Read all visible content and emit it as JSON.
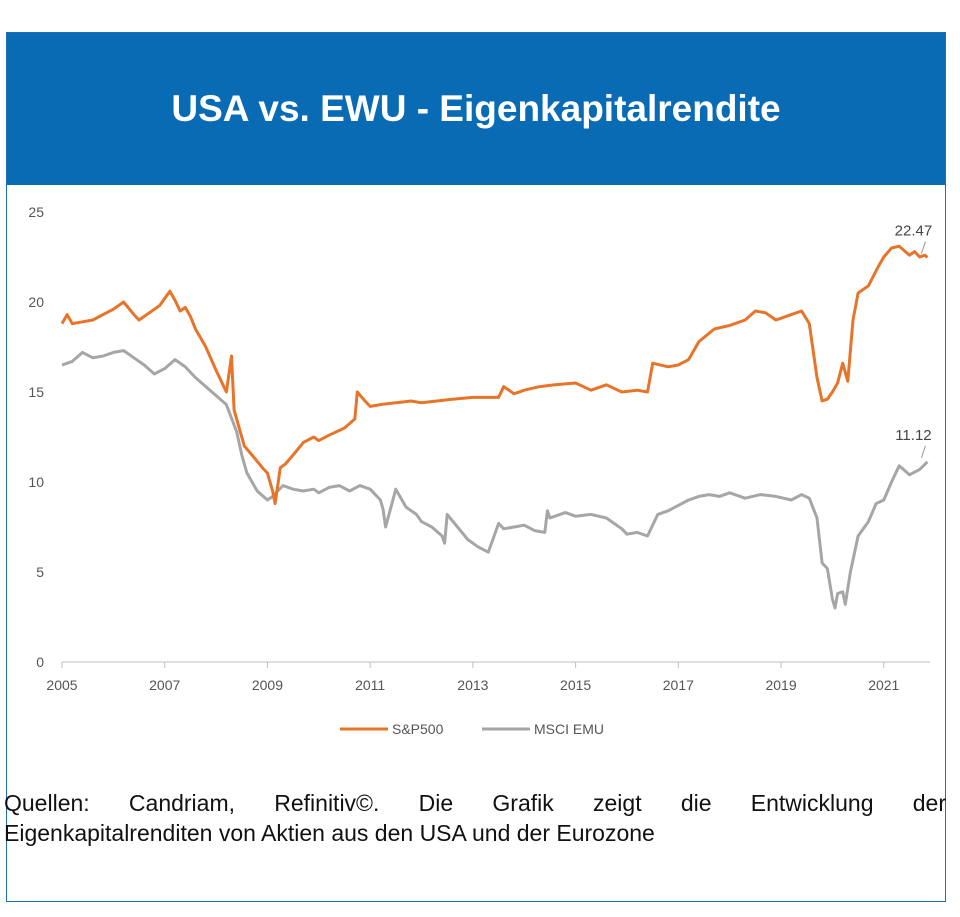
{
  "header": {
    "title": "USA vs. EWU - Eigenkapitalrendite"
  },
  "caption": {
    "line1": "Quellen: Candriam, Refinitiv©. Die Grafik zeigt die Entwicklung der",
    "line2": "Eigenkapitalrenditen von Aktien aus den USA und der Eurozone"
  },
  "colors": {
    "header_bg": "#0a6bb5",
    "sp500": "#e8742a",
    "msci_emu": "#a6a6a6"
  },
  "chart_data": {
    "type": "line",
    "title": "USA vs. EWU - Eigenkapitalrendite",
    "xlabel": "",
    "ylabel": "",
    "xlim": [
      2005,
      2021.9
    ],
    "ylim": [
      0,
      25
    ],
    "x_ticks": [
      "2005",
      "2007",
      "2009",
      "2011",
      "2013",
      "2015",
      "2017",
      "2019",
      "2021"
    ],
    "y_ticks": [
      "0",
      "5",
      "10",
      "15",
      "20",
      "25"
    ],
    "legend": {
      "position": "bottom-center",
      "entries": [
        "S&P500",
        "MSCI EMU"
      ]
    },
    "annotations": [
      {
        "series": "S&P500",
        "text": "22.47"
      },
      {
        "series": "MSCI EMU",
        "text": "11.12"
      }
    ],
    "series": [
      {
        "name": "S&P500",
        "color": "#e8742a",
        "x": [
          2005.0,
          2005.1,
          2005.2,
          2005.4,
          2005.6,
          2005.8,
          2006.0,
          2006.2,
          2006.4,
          2006.5,
          2006.7,
          2006.9,
          2007.0,
          2007.1,
          2007.2,
          2007.3,
          2007.4,
          2007.5,
          2007.6,
          2007.8,
          2008.0,
          2008.2,
          2008.3,
          2008.35,
          2008.45,
          2008.55,
          2008.7,
          2008.9,
          2009.0,
          2009.1,
          2009.15,
          2009.25,
          2009.35,
          2009.5,
          2009.7,
          2009.9,
          2010.0,
          2010.2,
          2010.5,
          2010.7,
          2010.75,
          2010.9,
          2011.0,
          2011.2,
          2011.5,
          2011.8,
          2012.0,
          2012.3,
          2012.6,
          2013.0,
          2013.3,
          2013.5,
          2013.6,
          2013.8,
          2014.0,
          2014.3,
          2014.6,
          2015.0,
          2015.3,
          2015.6,
          2015.9,
          2016.2,
          2016.4,
          2016.5,
          2016.8,
          2017.0,
          2017.2,
          2017.4,
          2017.7,
          2018.0,
          2018.3,
          2018.5,
          2018.7,
          2018.9,
          2019.0,
          2019.2,
          2019.4,
          2019.55,
          2019.7,
          2019.8,
          2019.9,
          2020.0,
          2020.1,
          2020.2,
          2020.3,
          2020.4,
          2020.5,
          2020.7,
          2020.9,
          2021.0,
          2021.15,
          2021.3,
          2021.5,
          2021.6,
          2021.7,
          2021.8,
          2021.85
        ],
        "values": [
          18.8,
          19.3,
          18.8,
          18.9,
          19.0,
          19.3,
          19.6,
          20.0,
          19.3,
          19.0,
          19.4,
          19.8,
          20.2,
          20.6,
          20.1,
          19.5,
          19.7,
          19.2,
          18.5,
          17.5,
          16.2,
          15.0,
          17.0,
          14.0,
          13.0,
          12.0,
          11.5,
          10.8,
          10.5,
          9.5,
          8.8,
          10.8,
          11.0,
          11.5,
          12.2,
          12.5,
          12.3,
          12.6,
          13.0,
          13.5,
          15.0,
          14.5,
          14.2,
          14.3,
          14.4,
          14.5,
          14.4,
          14.5,
          14.6,
          14.7,
          14.7,
          14.7,
          15.3,
          14.9,
          15.1,
          15.3,
          15.4,
          15.5,
          15.1,
          15.4,
          15.0,
          15.1,
          15.0,
          16.6,
          16.4,
          16.5,
          16.8,
          17.8,
          18.5,
          18.7,
          19.0,
          19.5,
          19.4,
          19.0,
          19.1,
          19.3,
          19.5,
          18.8,
          15.8,
          14.5,
          14.6,
          15.0,
          15.5,
          16.6,
          15.6,
          19.0,
          20.5,
          20.9,
          22.0,
          22.5,
          23.0,
          23.1,
          22.6,
          22.8,
          22.5,
          22.6,
          22.47
        ]
      },
      {
        "name": "MSCI EMU",
        "color": "#a6a6a6",
        "x": [
          2005.0,
          2005.2,
          2005.4,
          2005.6,
          2005.8,
          2006.0,
          2006.2,
          2006.4,
          2006.6,
          2006.8,
          2007.0,
          2007.2,
          2007.4,
          2007.6,
          2007.8,
          2008.0,
          2008.2,
          2008.4,
          2008.5,
          2008.6,
          2008.8,
          2009.0,
          2009.1,
          2009.3,
          2009.5,
          2009.7,
          2009.9,
          2010.0,
          2010.2,
          2010.4,
          2010.6,
          2010.8,
          2011.0,
          2011.2,
          2011.25,
          2011.3,
          2011.5,
          2011.7,
          2011.9,
          2012.0,
          2012.2,
          2012.4,
          2012.45,
          2012.5,
          2012.7,
          2012.9,
          2013.1,
          2013.3,
          2013.5,
          2013.6,
          2013.8,
          2014.0,
          2014.2,
          2014.4,
          2014.45,
          2014.5,
          2014.8,
          2015.0,
          2015.3,
          2015.6,
          2015.9,
          2016.0,
          2016.2,
          2016.4,
          2016.6,
          2016.8,
          2017.0,
          2017.2,
          2017.4,
          2017.6,
          2017.8,
          2018.0,
          2018.3,
          2018.6,
          2018.9,
          2019.2,
          2019.4,
          2019.55,
          2019.7,
          2019.8,
          2019.9,
          2020.0,
          2020.05,
          2020.1,
          2020.2,
          2020.25,
          2020.35,
          2020.5,
          2020.7,
          2020.85,
          2021.0,
          2021.15,
          2021.3,
          2021.5,
          2021.7,
          2021.85
        ],
        "values": [
          16.5,
          16.7,
          17.2,
          16.9,
          17.0,
          17.2,
          17.3,
          16.9,
          16.5,
          16.0,
          16.3,
          16.8,
          16.4,
          15.8,
          15.3,
          14.8,
          14.3,
          12.8,
          11.5,
          10.5,
          9.5,
          9.0,
          9.2,
          9.8,
          9.6,
          9.5,
          9.6,
          9.4,
          9.7,
          9.8,
          9.5,
          9.8,
          9.6,
          9.0,
          8.5,
          7.5,
          9.6,
          8.6,
          8.2,
          7.8,
          7.5,
          7.0,
          6.6,
          8.2,
          7.5,
          6.8,
          6.4,
          6.1,
          7.7,
          7.4,
          7.5,
          7.6,
          7.3,
          7.2,
          8.4,
          8.0,
          8.3,
          8.1,
          8.2,
          8.0,
          7.4,
          7.1,
          7.2,
          7.0,
          8.2,
          8.4,
          8.7,
          9.0,
          9.2,
          9.3,
          9.2,
          9.4,
          9.1,
          9.3,
          9.2,
          9.0,
          9.3,
          9.1,
          8.0,
          5.5,
          5.2,
          3.5,
          3.0,
          3.8,
          3.9,
          3.2,
          5.0,
          7.0,
          7.8,
          8.8,
          9.0,
          10.0,
          10.9,
          10.4,
          10.7,
          11.12
        ]
      }
    ]
  }
}
